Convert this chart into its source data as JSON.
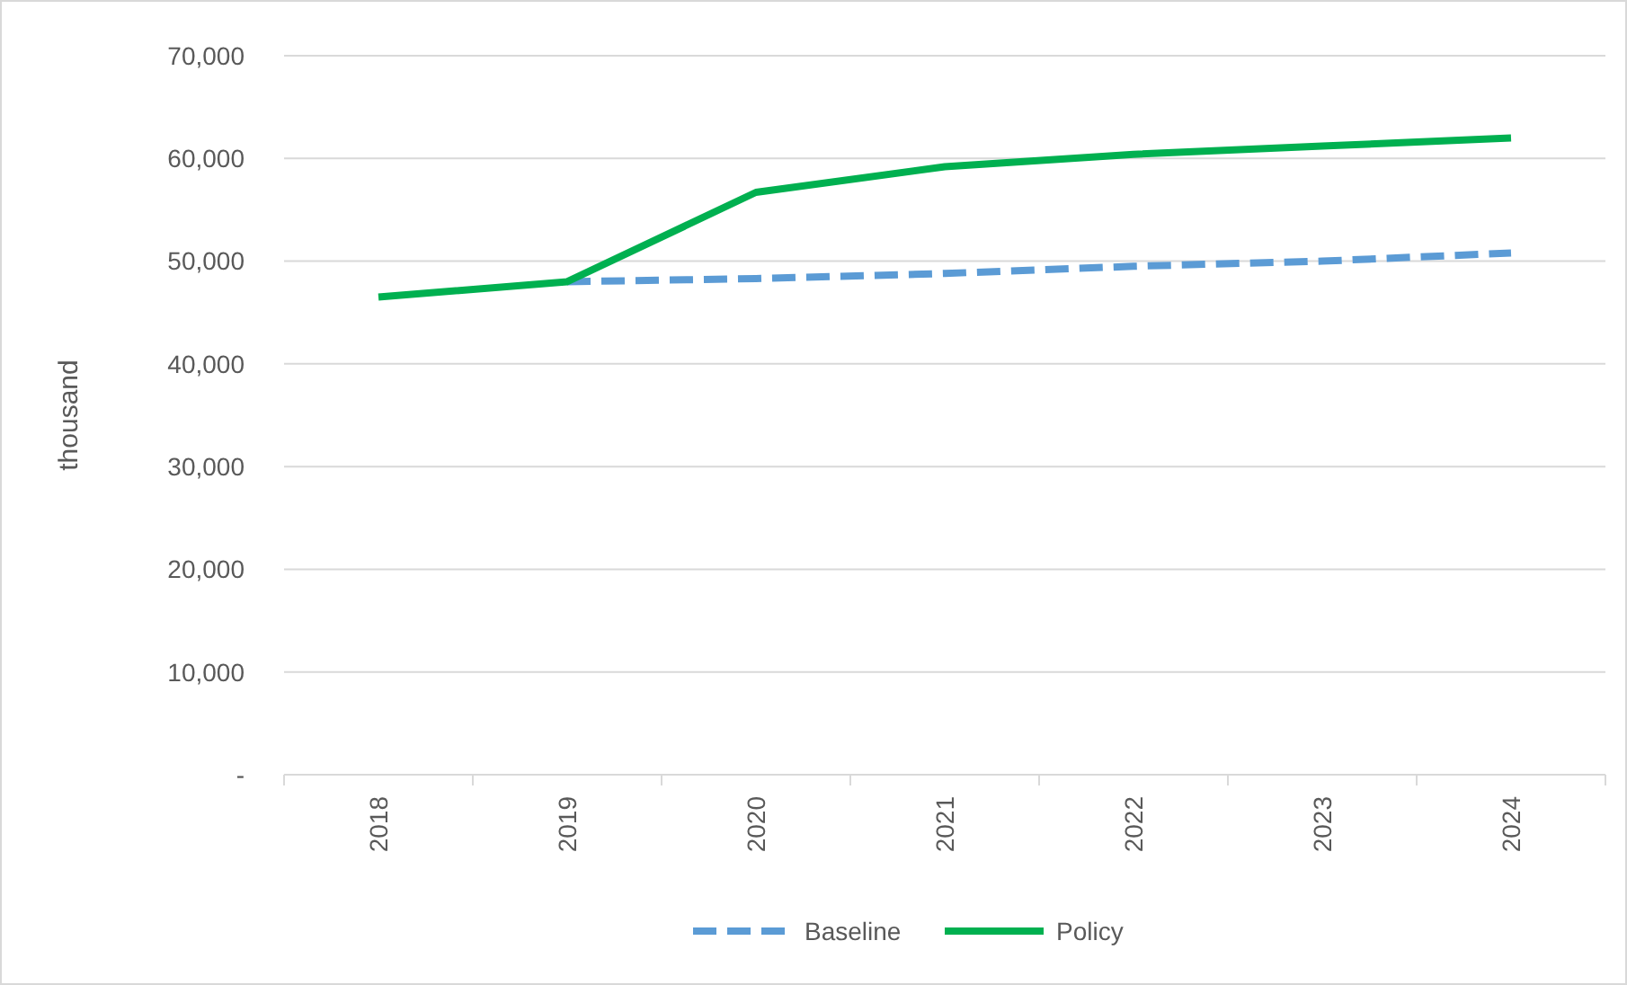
{
  "chart_data": {
    "type": "line",
    "ylabel": "thousand",
    "categories": [
      "2018",
      "2019",
      "2020",
      "2021",
      "2022",
      "2023",
      "2024"
    ],
    "series": [
      {
        "name": "Baseline",
        "color": "#5b9bd5",
        "line_style": "dashed",
        "values": [
          null,
          48000,
          48300,
          48800,
          49500,
          50000,
          50800
        ]
      },
      {
        "name": "Policy",
        "color": "#00b050",
        "line_style": "solid",
        "values": [
          46500,
          48000,
          56700,
          59200,
          60400,
          61200,
          62000
        ]
      }
    ],
    "ylim": [
      0,
      70000
    ],
    "yticks": [
      {
        "value": 0,
        "label": "-"
      },
      {
        "value": 10000,
        "label": "10,000"
      },
      {
        "value": 20000,
        "label": "20,000"
      },
      {
        "value": 30000,
        "label": "30,000"
      },
      {
        "value": 40000,
        "label": "40,000"
      },
      {
        "value": 50000,
        "label": "50,000"
      },
      {
        "value": 60000,
        "label": "60,000"
      },
      {
        "value": 70000,
        "label": "70,000"
      }
    ],
    "grid": "y",
    "legend": "bottom"
  }
}
